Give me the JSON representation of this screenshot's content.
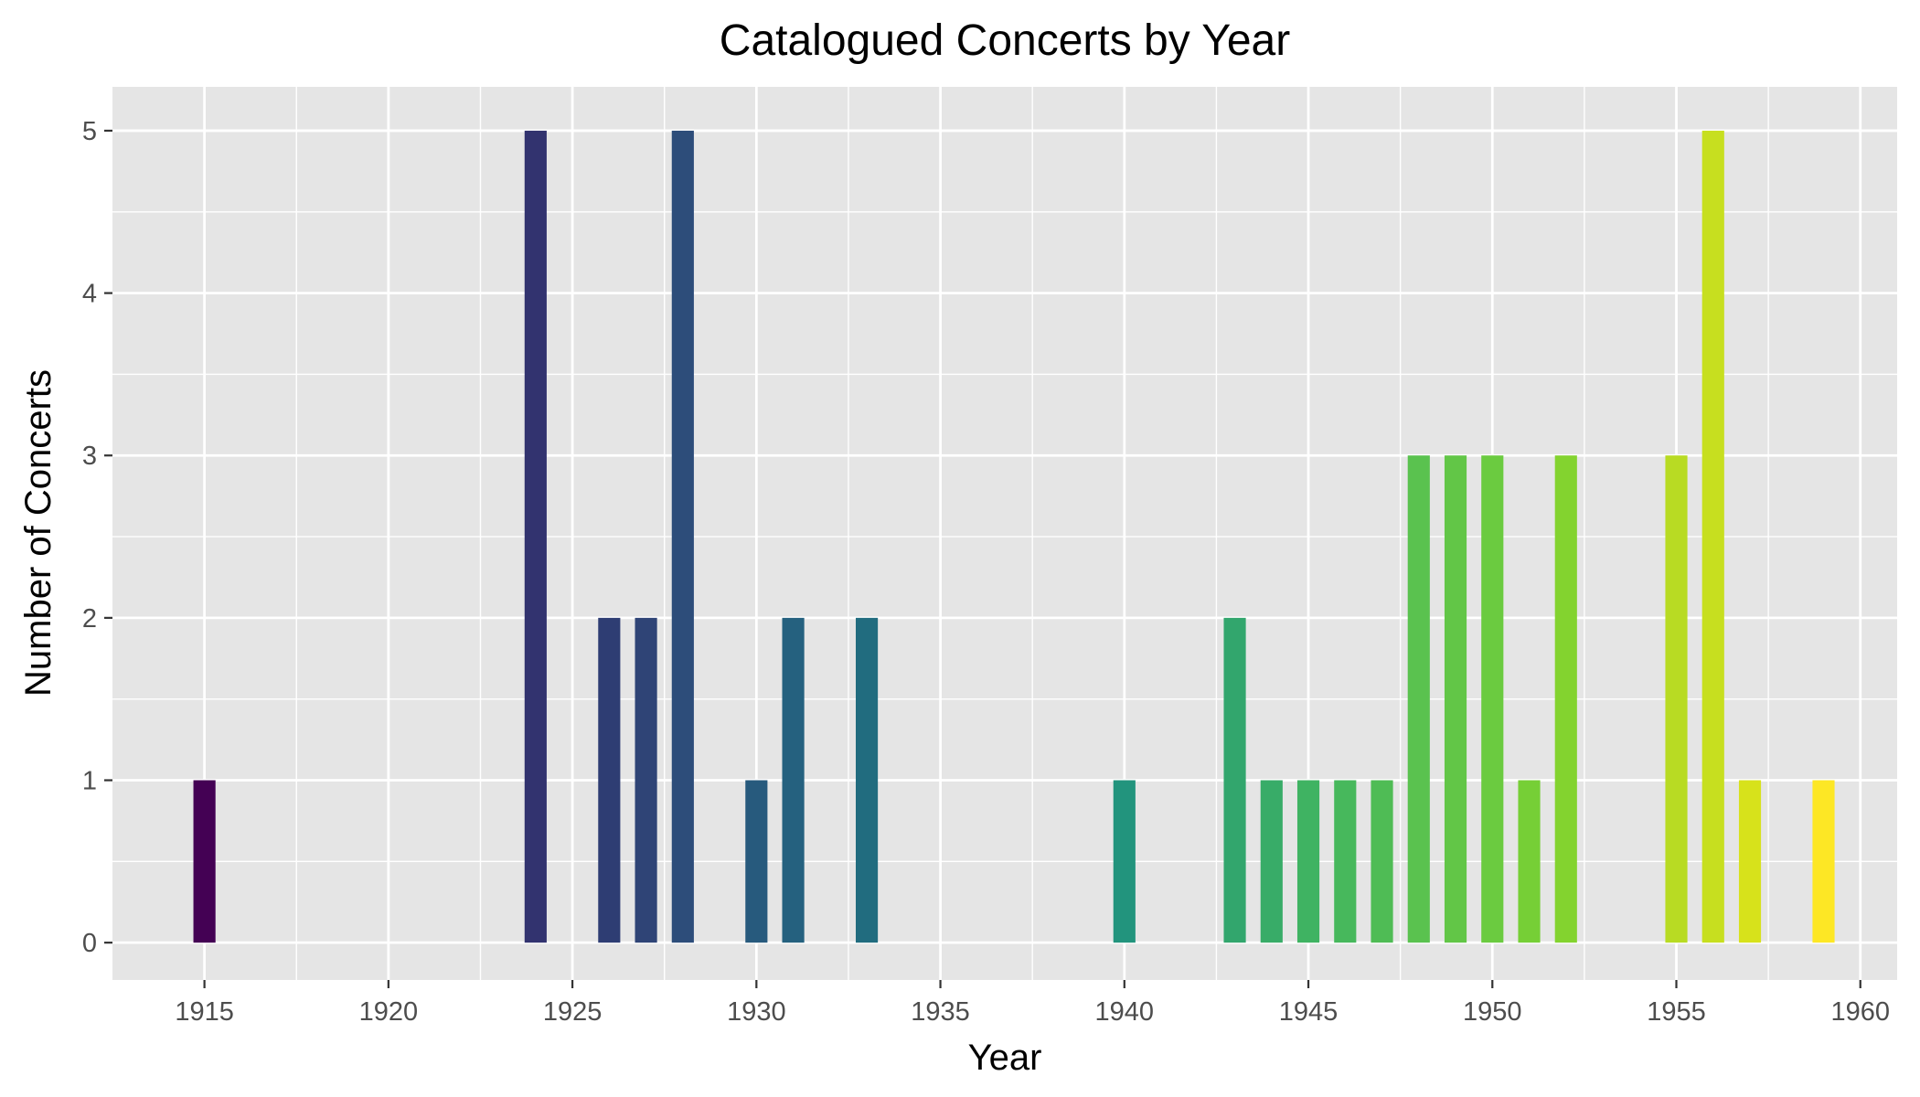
{
  "chart_data": {
    "type": "bar",
    "title": "Catalogued Concerts by Year",
    "xlabel": "Year",
    "ylabel": "Number of Concerts",
    "xlim": [
      1912.5,
      1961
    ],
    "ylim": [
      -0.23,
      5.27
    ],
    "x_ticks": [
      1915,
      1920,
      1925,
      1930,
      1935,
      1940,
      1945,
      1950,
      1955,
      1960
    ],
    "x_tick_labels": [
      "1915",
      "1920",
      "1925",
      "1930",
      "1935",
      "1940",
      "1945",
      "1950",
      "1955",
      "1960"
    ],
    "y_ticks": [
      0,
      1,
      2,
      3,
      4,
      5
    ],
    "y_tick_labels": [
      "0",
      "1",
      "2",
      "3",
      "4",
      "5"
    ],
    "grid": true,
    "legend": "none",
    "panel_color": "#e5e5e5",
    "grid_color": "#ffffff",
    "color_scale": "viridis (by year)",
    "x": [
      1915,
      1924,
      1926,
      1927,
      1928,
      1930,
      1931,
      1933,
      1940,
      1943,
      1944,
      1945,
      1946,
      1947,
      1948,
      1949,
      1950,
      1951,
      1952,
      1955,
      1956,
      1957,
      1959
    ],
    "values": [
      1,
      5,
      2,
      2,
      5,
      1,
      2,
      2,
      1,
      2,
      1,
      1,
      1,
      1,
      3,
      3,
      3,
      1,
      3,
      3,
      5,
      1,
      1
    ],
    "colors": [
      "#440154",
      "#32336f",
      "#2e3d73",
      "#2f4476",
      "#2d4d7a",
      "#275a7d",
      "#25617f",
      "#216c7f",
      "#22947d",
      "#32a66d",
      "#38ac68",
      "#3fb362",
      "#47b85c",
      "#4fbc55",
      "#5ac24f",
      "#62c647",
      "#6bcb40",
      "#76cf36",
      "#83d32f",
      "#b8db23",
      "#c7df1f",
      "#d7e21b",
      "#fde725"
    ]
  }
}
